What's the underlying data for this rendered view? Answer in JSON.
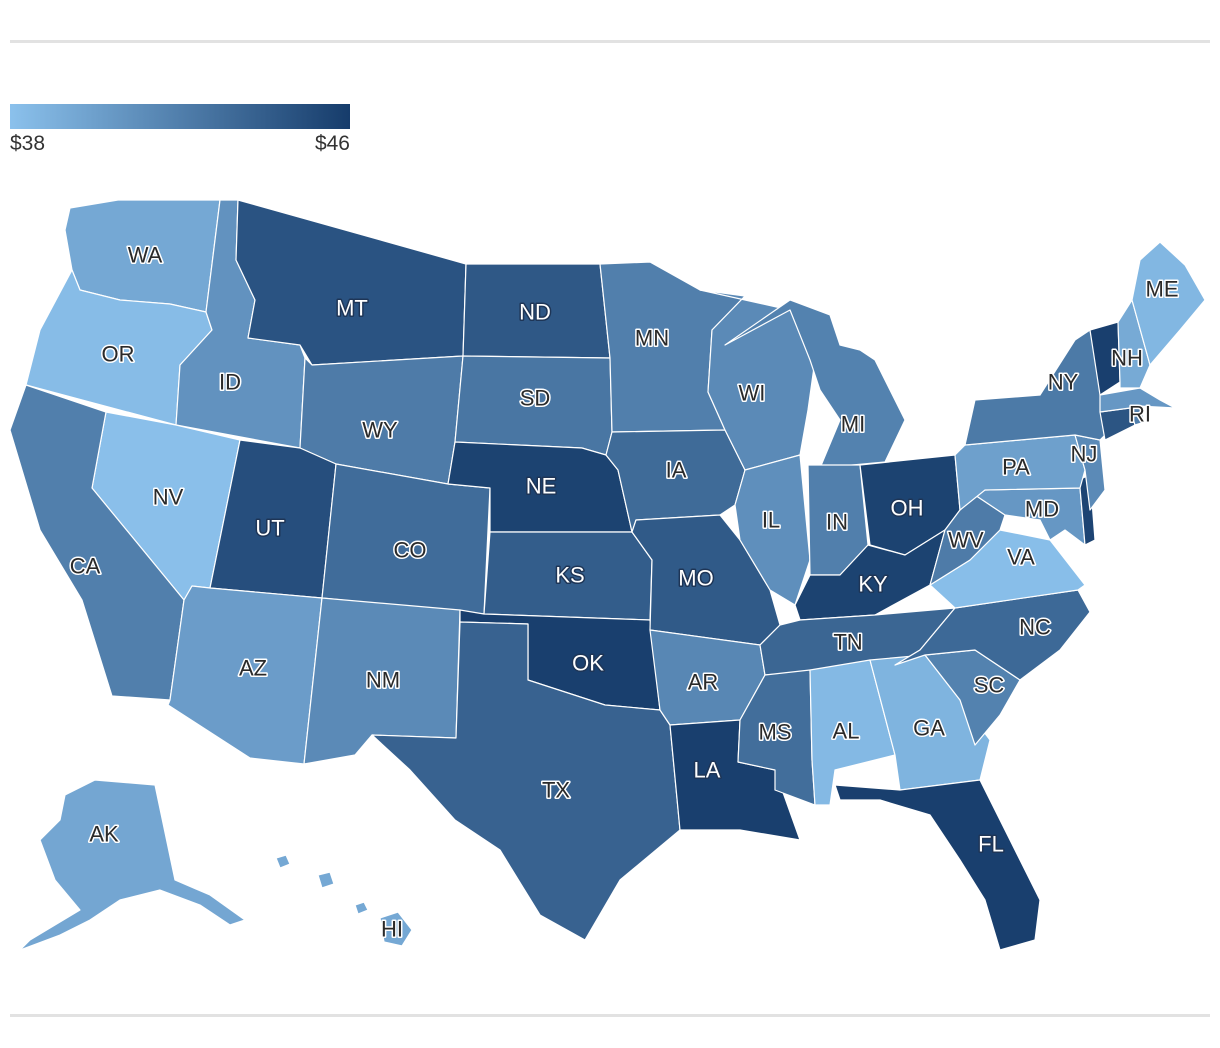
{
  "legend": {
    "min_label": "$38",
    "max_label": "$46",
    "min_value": 38,
    "max_value": 46,
    "color_low": "#8bc1ec",
    "color_high": "#163c6b"
  },
  "states": [
    {
      "id": "WA",
      "label": "WA",
      "value": 39.5
    },
    {
      "id": "OR",
      "label": "OR",
      "value": 38.3
    },
    {
      "id": "CA",
      "label": "CA",
      "value": 42.0
    },
    {
      "id": "NV",
      "label": "NV",
      "value": 38.1
    },
    {
      "id": "ID",
      "label": "ID",
      "value": 40.8
    },
    {
      "id": "MT",
      "label": "MT",
      "value": 44.6
    },
    {
      "id": "WY",
      "label": "WY",
      "value": 42.2
    },
    {
      "id": "UT",
      "label": "UT",
      "value": 44.9
    },
    {
      "id": "AZ",
      "label": "AZ",
      "value": 40.2
    },
    {
      "id": "CO",
      "label": "CO",
      "value": 43.1
    },
    {
      "id": "NM",
      "label": "NM",
      "value": 41.3
    },
    {
      "id": "ND",
      "label": "ND",
      "value": 44.3
    },
    {
      "id": "SD",
      "label": "SD",
      "value": 42.5
    },
    {
      "id": "NE",
      "label": "NE",
      "value": 45.6
    },
    {
      "id": "KS",
      "label": "KS",
      "value": 44.0
    },
    {
      "id": "OK",
      "label": "OK",
      "value": 45.8
    },
    {
      "id": "TX",
      "label": "TX",
      "value": 43.7
    },
    {
      "id": "MN",
      "label": "MN",
      "value": 42.0
    },
    {
      "id": "IA",
      "label": "IA",
      "value": 43.2
    },
    {
      "id": "MO",
      "label": "MO",
      "value": 44.2
    },
    {
      "id": "AR",
      "label": "AR",
      "value": 41.5
    },
    {
      "id": "LA",
      "label": "LA",
      "value": 45.8
    },
    {
      "id": "WI",
      "label": "WI",
      "value": 41.3
    },
    {
      "id": "IL",
      "label": "IL",
      "value": 41.0
    },
    {
      "id": "MI",
      "label": "MI",
      "value": 41.8
    },
    {
      "id": "IN",
      "label": "IN",
      "value": 42.0
    },
    {
      "id": "OH",
      "label": "OH",
      "value": 45.6
    },
    {
      "id": "KY",
      "label": "KY",
      "value": 45.6
    },
    {
      "id": "TN",
      "label": "TN",
      "value": 43.5
    },
    {
      "id": "MS",
      "label": "MS",
      "value": 43.0
    },
    {
      "id": "AL",
      "label": "AL",
      "value": 38.5
    },
    {
      "id": "GA",
      "label": "GA",
      "value": 38.8
    },
    {
      "id": "FL",
      "label": "FL",
      "value": 45.8
    },
    {
      "id": "SC",
      "label": "SC",
      "value": 41.8
    },
    {
      "id": "NC",
      "label": "NC",
      "value": 43.3
    },
    {
      "id": "VA",
      "label": "VA",
      "value": 38.2
    },
    {
      "id": "WV",
      "label": "WV",
      "value": 42.2
    },
    {
      "id": "MD",
      "label": "MD",
      "value": 40.5
    },
    {
      "id": "DE",
      "label": "",
      "value": 45.5
    },
    {
      "id": "PA",
      "label": "PA",
      "value": 40.0
    },
    {
      "id": "NJ",
      "label": "NJ",
      "value": 41.3
    },
    {
      "id": "NY",
      "label": "NY",
      "value": 42.3
    },
    {
      "id": "CT",
      "label": "",
      "value": 44.5
    },
    {
      "id": "RI",
      "label": "RI",
      "value": 42.0
    },
    {
      "id": "MA",
      "label": "",
      "value": 40.5
    },
    {
      "id": "VT",
      "label": "",
      "value": 45.8
    },
    {
      "id": "NH",
      "label": "NH",
      "value": 39.4
    },
    {
      "id": "ME",
      "label": "ME",
      "value": 38.6
    },
    {
      "id": "AK",
      "label": "AK",
      "value": 39.6
    },
    {
      "id": "HI",
      "label": "HI",
      "value": 39.5
    }
  ]
}
